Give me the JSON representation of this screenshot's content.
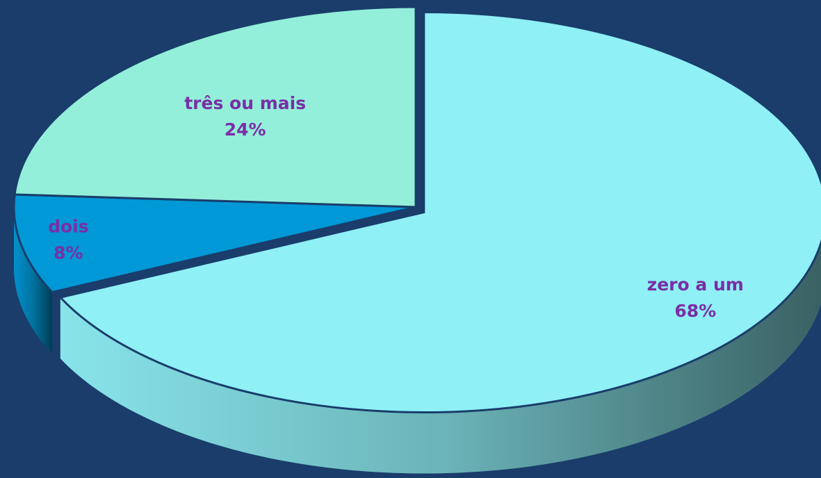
{
  "chart_data": {
    "type": "pie",
    "categories": [
      "zero a um",
      "dois",
      "três ou mais"
    ],
    "values": [
      68,
      8,
      24
    ],
    "value_labels": [
      "68%",
      "8%",
      "24%"
    ],
    "colors": [
      "#8ff0f6",
      "#0098d6",
      "#93efd9"
    ],
    "start_angle": "top",
    "direction": "clockwise",
    "three_d": true
  }
}
